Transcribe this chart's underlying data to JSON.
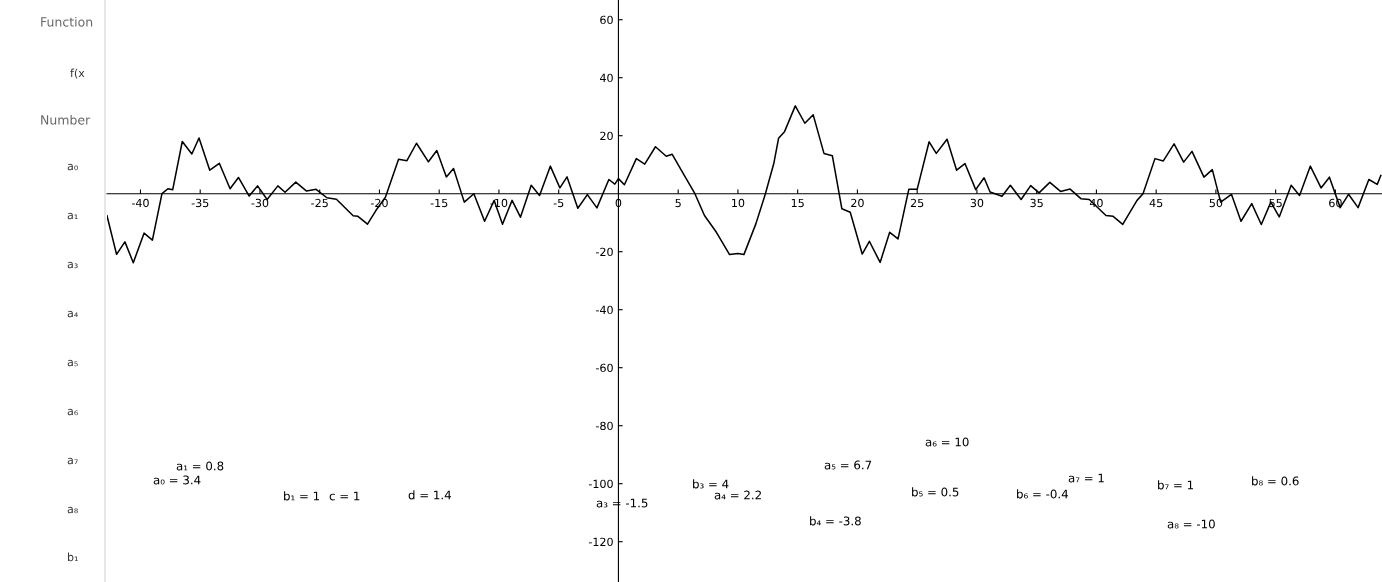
{
  "chart_data": {
    "type": "line",
    "x": [
      -42.8,
      -42.0,
      -41.3,
      -40.6,
      -39.7,
      -39.0,
      -38.2,
      -37.7,
      -37.3,
      -36.5,
      -35.7,
      -35.1,
      -34.2,
      -33.4,
      -32.5,
      -31.8,
      -30.9,
      -30.2,
      -29.4,
      -28.5,
      -27.9,
      -27.0,
      -26.1,
      -25.3,
      -24.4,
      -23.6,
      -22.2,
      -21.8,
      -21.0,
      -20.3,
      -19.5,
      -18.4,
      -17.7,
      -16.9,
      -15.9,
      -15.2,
      -14.4,
      -13.8,
      -12.9,
      -12.1,
      -11.2,
      -10.4,
      -9.7,
      -8.9,
      -8.2,
      -7.3,
      -6.6,
      -5.7,
      -4.9,
      -4.3,
      -3.4,
      -2.6,
      -1.8,
      -0.8,
      -0.3,
      0,
      0.5,
      1.5,
      2.2,
      3.1,
      4.0,
      4.5,
      5.5,
      6.4,
      7.2,
      8.2,
      9.3,
      10.0,
      10.5,
      11.5,
      12.3,
      13.0,
      13.4,
      13.9,
      14.8,
      15.6,
      16.3,
      17.2,
      17.9,
      18.7,
      19.4,
      20.4,
      21.0,
      21.9,
      22.7,
      23.4,
      24.3,
      25.0,
      26.0,
      26.6,
      27.5,
      28.3,
      29.0,
      29.9,
      30.6,
      31.1,
      32.1,
      32.8,
      33.7,
      34.5,
      35.2,
      36.1,
      37.0,
      37.8,
      38.7,
      39.4,
      40.8,
      41.4,
      42.2,
      43.4,
      43.9,
      44.9,
      45.6,
      46.5,
      47.3,
      48.0,
      49.0,
      49.7,
      50.4,
      51.3,
      52.1,
      53.0,
      53.8,
      54.6,
      55.3,
      56.3,
      57.0,
      57.9,
      58.8,
      59.5,
      60.4,
      61.1,
      61.9,
      62.8,
      63.5,
      63.8
    ],
    "series": [
      {
        "color": "#000000",
        "values": [
          -7.6,
          -20.9,
          -16.6,
          -23.8,
          -13.6,
          -16.0,
          0,
          1.7,
          1.4,
          18.0,
          13.7,
          19.2,
          8.1,
          10.5,
          1.7,
          5.6,
          -0.8,
          2.7,
          -2.0,
          2.7,
          0.5,
          4.0,
          0.9,
          1.5,
          -1.4,
          -1.9,
          -7.6,
          -7.8,
          -10.5,
          -5.8,
          -1.2,
          11.9,
          11.4,
          17.4,
          11.0,
          14.9,
          5.8,
          8.7,
          -2.9,
          0,
          -9.5,
          -2.3,
          -10.5,
          -2.3,
          -8.1,
          2.9,
          -0.6,
          9.5,
          2.0,
          5.8,
          -5.0,
          -0.3,
          -4.9,
          4.9,
          3.3,
          5.2,
          3.1,
          12.1,
          10.2,
          16.2,
          12.9,
          13.6,
          6.4,
          0,
          -7.5,
          -13.3,
          -21.0,
          -20.6,
          -21.0,
          -10.4,
          0,
          10.4,
          19.1,
          21.4,
          30.3,
          24.3,
          27.2,
          13.9,
          13.1,
          -5.2,
          -6.4,
          -20.8,
          -16.4,
          -23.7,
          -13.3,
          -15.6,
          1.5,
          1.5,
          17.9,
          13.9,
          18.8,
          8.1,
          10.4,
          1.4,
          5.5,
          0.6,
          -0.9,
          2.9,
          -2.0,
          2.8,
          0.3,
          3.9,
          0.8,
          1.6,
          -1.7,
          -2.0,
          -7.5,
          -7.8,
          -10.6,
          -2.3,
          0,
          12.1,
          11.3,
          17.2,
          10.9,
          14.6,
          5.7,
          8.3,
          -2.9,
          -0.2,
          -9.5,
          -3.4,
          -10.6,
          -2.9,
          -8.0,
          2.9,
          -0.6,
          9.5,
          2.0,
          5.7,
          -4.8,
          -0.2,
          -4.8,
          4.9,
          3.2,
          6.3
        ]
      }
    ],
    "xlim": [
      -42.8,
      63.9
    ],
    "ylim": [
      -133.9,
      66.8
    ],
    "xticks": [
      -40,
      -35,
      -30,
      -25,
      -20,
      -15,
      -10,
      -5,
      0,
      5,
      10,
      15,
      20,
      25,
      30,
      35,
      40,
      45,
      50,
      55,
      60
    ],
    "yticks": [
      -120,
      -100,
      -80,
      -60,
      -40,
      -20,
      20,
      40,
      60
    ],
    "grid": false,
    "marker": "none",
    "line_style": "solid",
    "annotations": [
      "Function",
      "f(x",
      "Number",
      "a₀",
      "a₁",
      "a₃",
      "a₄",
      "a₅",
      "a₆",
      "a₇",
      "a₈",
      "b₁",
      "a₁ = 0.8",
      "a₀ = 3.4",
      "b₁ = 1",
      "c = 1",
      "d = 1.4",
      "a₃ = -1.5",
      "b₃ = 4",
      "a₄ = 2.2",
      "b₄ = -3.8",
      "a₅ = 6.7",
      "b₅ = 0.5",
      "a₆ = 10",
      "b₆ = -0.4",
      "a₇ = 1",
      "b₇ = 1",
      "a₈ = -10",
      "b₈ = 0.6"
    ]
  }
}
